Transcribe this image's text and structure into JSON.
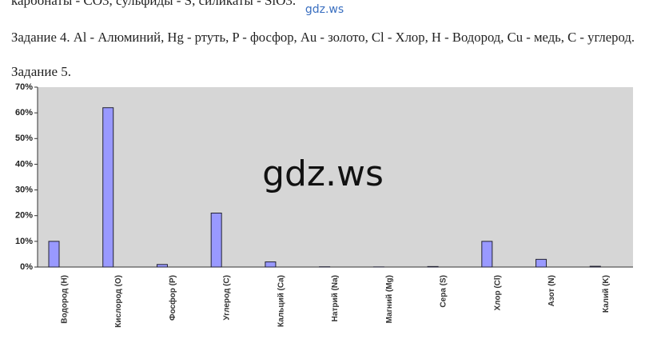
{
  "text": {
    "line0": "карбонаты - CO3, сульфиды - S, силикаты - SiO3.",
    "task4": "Задание 4. Al - Алюминий, Hg - ртуть, P - фосфор, Au - золото, Cl - Хлор, H - Водород, Cu - медь, C - углерод.",
    "task5": "Задание 5.",
    "watermark": "gdz.ws"
  },
  "chart_data": {
    "type": "bar",
    "categories": [
      "Водород (H)",
      "Кислород (O)",
      "Фосфор (P)",
      "Углерод (C)",
      "Кальций (Ca)",
      "Натрий (Na)",
      "Магний (Mg)",
      "Сера (S)",
      "Хлор (Cl)",
      "Азот (N)",
      "Калий (K)"
    ],
    "values": [
      10,
      62,
      1,
      21,
      2,
      0.1,
      0.05,
      0.2,
      10,
      3,
      0.3
    ],
    "color": "#9999ff",
    "ylim": [
      0,
      70
    ],
    "yticks": [
      {
        "value": 0,
        "label": "0%"
      },
      {
        "value": 10,
        "label": "10%"
      },
      {
        "value": 20,
        "label": "20%"
      },
      {
        "value": 30,
        "label": "30%"
      },
      {
        "value": 40,
        "label": "40%"
      },
      {
        "value": 50,
        "label": "50%"
      },
      {
        "value": 60,
        "label": "60%"
      },
      {
        "value": 70,
        "label": "70%"
      }
    ],
    "grid": false
  }
}
